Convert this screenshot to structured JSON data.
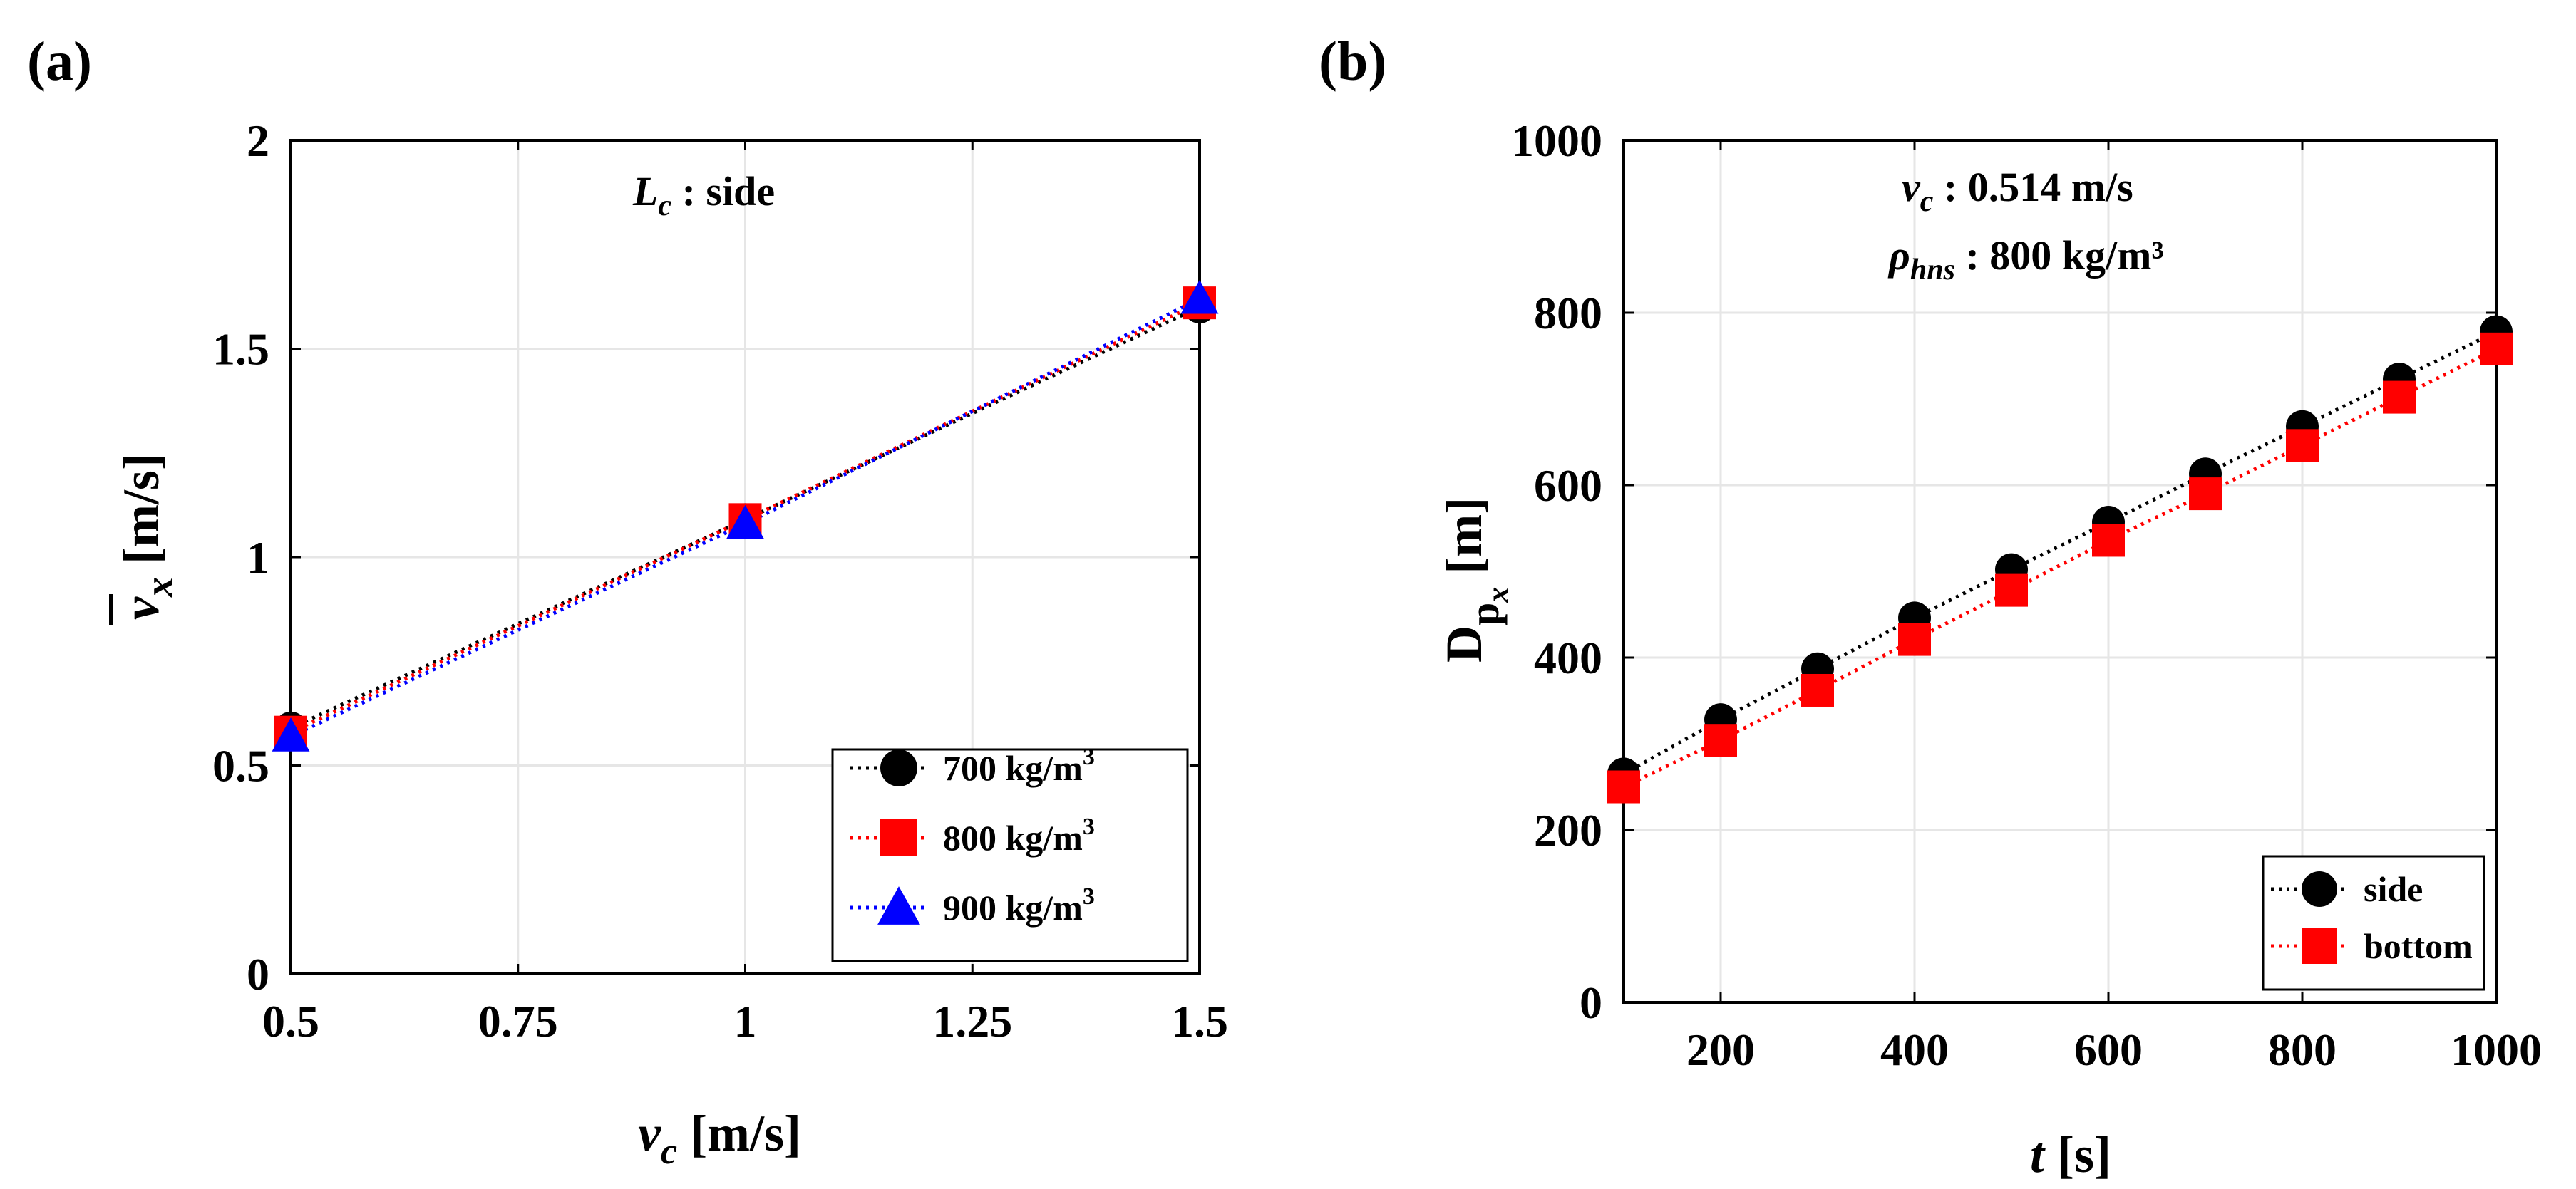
{
  "colors": {
    "black": "#000000",
    "red": "#ff0000",
    "blue": "#0000ff",
    "grid": "#e6e6e6"
  },
  "chart_data": [
    {
      "panel": "(a)",
      "type": "line",
      "annotation": {
        "symbol": "L",
        "subscript": "c",
        "rest": " : side"
      },
      "xlabel": {
        "symbol": "v",
        "subscript": "c",
        "rest": " [m/s]"
      },
      "ylabel": {
        "symbol": "v",
        "subscript": "x",
        "rest": " [m/s]",
        "overbar": true
      },
      "xlim": [
        0.5,
        1.5
      ],
      "ylim": [
        0,
        2
      ],
      "xticks": [
        0.5,
        0.75,
        1,
        1.25,
        1.5
      ],
      "xtick_labels": [
        "0.5",
        "0.75",
        "1",
        "1.25",
        "1.5"
      ],
      "yticks": [
        0,
        0.5,
        1,
        1.5,
        2
      ],
      "ytick_labels": [
        "0",
        "0.5",
        "1",
        "1.5",
        "2"
      ],
      "grid": true,
      "legend_position": "bottom-right",
      "x": [
        0.5,
        1,
        1.5
      ],
      "series": [
        {
          "name": "700 kg/m",
          "sup": "3",
          "marker": "circle",
          "color": "#000000",
          "values": [
            0.59,
            1.09,
            1.6
          ]
        },
        {
          "name": "800 kg/m",
          "sup": "3",
          "marker": "square",
          "color": "#ff0000",
          "values": [
            0.58,
            1.09,
            1.61
          ]
        },
        {
          "name": "900 kg/m",
          "sup": "3",
          "marker": "triangle",
          "color": "#0000ff",
          "values": [
            0.57,
            1.08,
            1.62
          ]
        }
      ]
    },
    {
      "panel": "(b)",
      "type": "line",
      "annotations": [
        {
          "symbol": "v",
          "subscript": "c",
          "rest": " : 0.514 m/s"
        },
        {
          "symbol": "ρ",
          "subscript": "hns",
          "rest": " : 800 kg/m³"
        }
      ],
      "xlabel": {
        "symbol": "t",
        "rest": " [s]"
      },
      "ylabel": {
        "symbol": "D",
        "subscript": "p",
        "subsubscript": "x",
        "rest": "  [m]"
      },
      "xlim": [
        100,
        1000
      ],
      "ylim": [
        0,
        1000
      ],
      "xticks": [
        200,
        400,
        600,
        800,
        1000
      ],
      "xtick_labels": [
        "200",
        "400",
        "600",
        "800",
        "1000"
      ],
      "yticks": [
        0,
        200,
        400,
        600,
        800,
        1000
      ],
      "ytick_labels": [
        "0",
        "200",
        "400",
        "600",
        "800",
        "1000"
      ],
      "grid": true,
      "legend_position": "bottom-right",
      "x": [
        100,
        200,
        300,
        400,
        500,
        600,
        700,
        800,
        900,
        1000
      ],
      "series": [
        {
          "name": "side",
          "marker": "circle",
          "color": "#000000",
          "values": [
            265,
            328,
            387,
            446,
            502,
            557,
            613,
            668,
            723,
            778
          ]
        },
        {
          "name": "bottom",
          "marker": "square",
          "color": "#ff0000",
          "values": [
            250,
            304,
            362,
            421,
            478,
            536,
            590,
            646,
            702,
            758
          ]
        }
      ]
    }
  ]
}
